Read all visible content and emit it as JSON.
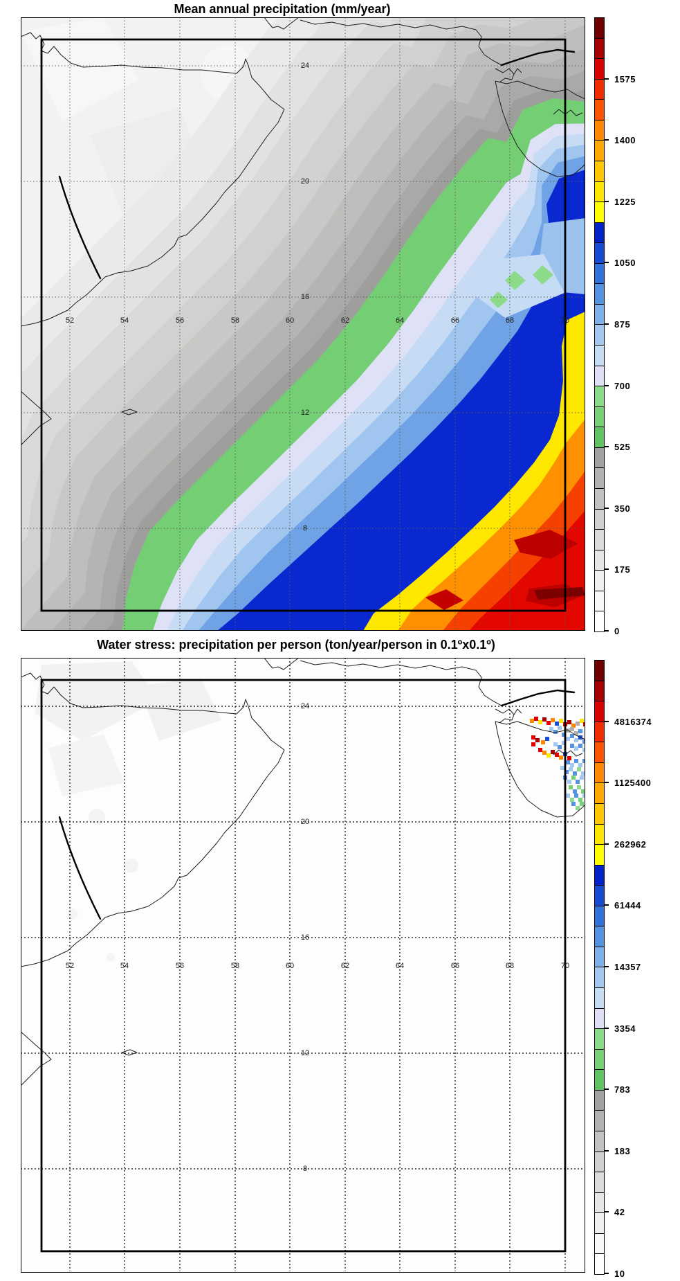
{
  "top_chart": {
    "title": "Mean annual precipitation (mm/year)",
    "colorbar_labels": [
      "1575",
      "1400",
      "1225",
      "1050",
      "875",
      "700",
      "525",
      "350",
      "175",
      "0"
    ],
    "lon_labels": [
      "52",
      "54",
      "56",
      "58",
      "60",
      "62",
      "64",
      "66",
      "68",
      "70"
    ],
    "lat_labels": [
      "24",
      "20",
      "16",
      "12",
      "8"
    ]
  },
  "bottom_chart": {
    "title": "Water stress: precipitation per person (ton/year/person in 0.1ºx0.1º)",
    "colorbar_labels": [
      "4816374",
      "1125400",
      "262962",
      "61444",
      "14357",
      "3354",
      "783",
      "183",
      "42",
      "10"
    ],
    "lon_labels": [
      "52",
      "54",
      "56",
      "58",
      "60",
      "62",
      "64",
      "66",
      "68",
      "70"
    ],
    "lat_labels": [
      "24",
      "20",
      "16",
      "12",
      "8"
    ],
    "speckles": [
      [
        736,
        88,
        "o"
      ],
      [
        742,
        85,
        "r"
      ],
      [
        748,
        90,
        "y"
      ],
      [
        754,
        86,
        "R"
      ],
      [
        760,
        91,
        "r"
      ],
      [
        766,
        87,
        "o"
      ],
      [
        772,
        92,
        "b"
      ],
      [
        778,
        88,
        "y"
      ],
      [
        784,
        93,
        "r"
      ],
      [
        790,
        90,
        "R"
      ],
      [
        796,
        95,
        "o"
      ],
      [
        802,
        92,
        "k"
      ],
      [
        808,
        88,
        "y"
      ],
      [
        813,
        93,
        "r"
      ],
      [
        788,
        102,
        "k"
      ],
      [
        794,
        100,
        "k"
      ],
      [
        800,
        106,
        "k"
      ],
      [
        806,
        103,
        "B"
      ],
      [
        738,
        112,
        "r"
      ],
      [
        744,
        116,
        "R"
      ],
      [
        738,
        122,
        "r"
      ],
      [
        752,
        119,
        "o"
      ],
      [
        758,
        114,
        "b"
      ],
      [
        748,
        130,
        "r"
      ],
      [
        754,
        134,
        "o"
      ],
      [
        760,
        138,
        "y"
      ],
      [
        766,
        133,
        "R"
      ],
      [
        772,
        137,
        "r"
      ],
      [
        778,
        141,
        "o"
      ],
      [
        784,
        136,
        "b"
      ],
      [
        790,
        142,
        "r"
      ],
      [
        764,
        100,
        "l"
      ],
      [
        770,
        104,
        "B"
      ],
      [
        776,
        98,
        "l"
      ],
      [
        782,
        108,
        "B"
      ],
      [
        788,
        114,
        "l"
      ],
      [
        794,
        110,
        "B"
      ],
      [
        800,
        116,
        "l"
      ],
      [
        806,
        112,
        "b"
      ],
      [
        812,
        118,
        "B"
      ],
      [
        770,
        122,
        "l"
      ],
      [
        776,
        126,
        "B"
      ],
      [
        782,
        120,
        "l"
      ],
      [
        794,
        124,
        "B"
      ],
      [
        800,
        128,
        "l"
      ],
      [
        806,
        124,
        "B"
      ],
      [
        812,
        130,
        "l"
      ],
      [
        788,
        148,
        "B"
      ],
      [
        794,
        152,
        "l"
      ],
      [
        800,
        146,
        "B"
      ],
      [
        806,
        152,
        "l"
      ],
      [
        812,
        146,
        "B"
      ],
      [
        780,
        156,
        "l"
      ],
      [
        786,
        162,
        "B"
      ],
      [
        792,
        158,
        "l"
      ],
      [
        798,
        164,
        "B"
      ],
      [
        804,
        158,
        "G"
      ],
      [
        810,
        164,
        "l"
      ],
      [
        784,
        170,
        "B"
      ],
      [
        790,
        176,
        "l"
      ],
      [
        796,
        170,
        "g"
      ],
      [
        802,
        176,
        "B"
      ],
      [
        808,
        170,
        "l"
      ],
      [
        792,
        184,
        "g"
      ],
      [
        798,
        190,
        "B"
      ],
      [
        804,
        184,
        "G"
      ],
      [
        810,
        190,
        "g"
      ],
      [
        788,
        196,
        "l"
      ],
      [
        794,
        202,
        "G"
      ],
      [
        800,
        196,
        "B"
      ],
      [
        806,
        202,
        "g"
      ],
      [
        812,
        196,
        "l"
      ],
      [
        796,
        208,
        "B"
      ],
      [
        802,
        214,
        "G"
      ],
      [
        808,
        208,
        "g"
      ]
    ]
  },
  "speckle_colors": {
    "b": "#1b4fd5",
    "B": "#5694e2",
    "l": "#a4c8f0",
    "L": "#c6dcf5",
    "g": "#77cf77",
    "G": "#8bdb8b",
    "r": "#e10000",
    "R": "#a80000",
    "o": "#ff8800",
    "y": "#ffe800",
    "k": "#b0b0b0"
  },
  "palette": [
    "#ffffff",
    "#f7f7f7",
    "#efefef",
    "#e6e6e6",
    "#dcdcdc",
    "#d0d0d0",
    "#c2c2c2",
    "#b2b2b2",
    "#a2a2a2",
    "#63c363",
    "#77cf77",
    "#8bdb8b",
    "#dfdff7",
    "#c6dcf5",
    "#a4c8f0",
    "#7fb0ea",
    "#5694e2",
    "#3272da",
    "#164bd2",
    "#0024c8",
    "#ffff00",
    "#ffe800",
    "#ffc800",
    "#ffa800",
    "#ff8800",
    "#ff5500",
    "#f22c00",
    "#d90000",
    "#a80000",
    "#700000"
  ],
  "chart_data": [
    {
      "type": "heatmap",
      "subtype": "filled-contour-map",
      "title": "Mean annual precipitation (mm/year)",
      "units": "mm/year",
      "region": {
        "lon_range": [
          50.2,
          70.8
        ],
        "lat_range": [
          4.4,
          25.7
        ]
      },
      "lon_ticks": [
        52,
        54,
        56,
        58,
        60,
        62,
        64,
        66,
        68,
        70
      ],
      "lat_ticks": [
        8,
        12,
        16,
        20,
        24
      ],
      "inner_domain_box": {
        "lon": [
          51,
          70
        ],
        "lat": [
          5,
          25
        ]
      },
      "levels": {
        "min": 0,
        "max": 1750,
        "step": 58.3,
        "labeled": [
          0,
          175,
          350,
          525,
          700,
          875,
          1050,
          1225,
          1400,
          1575
        ]
      },
      "legend_position": "right-colorbar",
      "grid": true,
      "pattern": "Low precipitation (0-525 mm, white-to-gray) over the Arabian Peninsula in the NW two-thirds; values increase diagonally toward the SE: a green band (525-700) from Gujarat to the SW bottom edge, then pale-to-deep blue bands (700-1170), a yellow band (~1170-1280) and orange-to-dark-red maxima (1400-1750) in the bottom-right corner of the Arabian Sea; small dark-red maxima near 66-70E, 5-7N."
    },
    {
      "type": "heatmap",
      "subtype": "gridded-map",
      "title": "Water stress: precipitation per person (ton/year/person in 0.1ºx0.1º)",
      "units": "ton/year/person",
      "cell_resolution_deg": 0.1,
      "region": {
        "lon_range": [
          50.2,
          70.8
        ],
        "lat_range": [
          4.4,
          25.7
        ]
      },
      "lon_ticks": [
        52,
        54,
        56,
        58,
        60,
        62,
        64,
        66,
        68,
        70
      ],
      "lat_ticks": [
        8,
        12,
        16,
        20,
        24
      ],
      "inner_domain_box": {
        "lon": [
          51,
          70
        ],
        "lat": [
          5,
          25
        ]
      },
      "scale": "log",
      "labeled_levels": [
        10,
        42,
        183,
        783,
        3354,
        14357,
        61444,
        262962,
        1125400,
        4816374
      ],
      "legend_position": "right-colorbar",
      "grid": true,
      "pattern": "Field is blank/near-white almost everywhere (no population or no data); faint light-gray patches over land in the NW; a dense cluster of colored 0.1-degree cells (blues, greens, reds, oranges, yellows) hugging the Kathiawar/Gujarat coast near 68-71E, 20-24N."
    }
  ]
}
